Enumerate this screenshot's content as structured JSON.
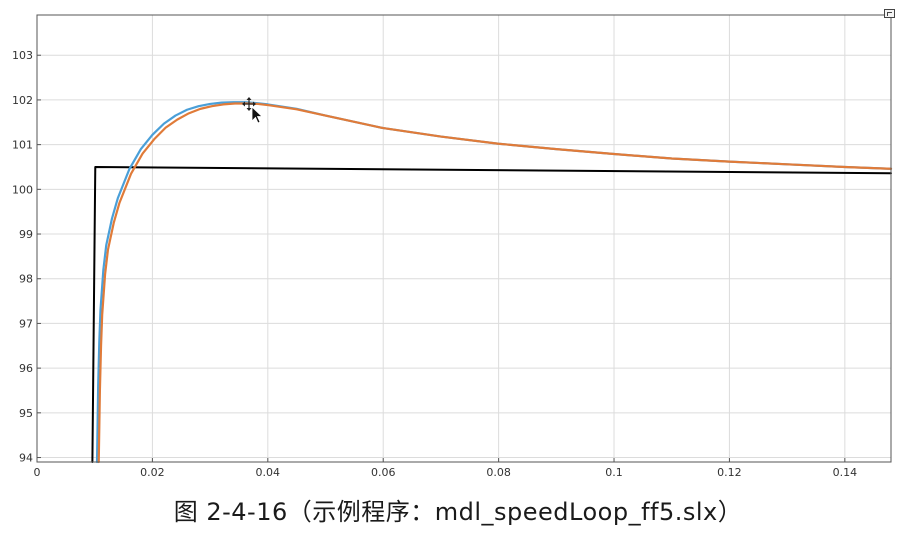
{
  "chart_data": {
    "type": "line",
    "title": "",
    "xlabel": "",
    "ylabel": "",
    "xlim": [
      0,
      0.148
    ],
    "ylim": [
      93.9,
      103.9
    ],
    "x_ticks": [
      0,
      0.02,
      0.04,
      0.06,
      0.08,
      0.1,
      0.12,
      0.14
    ],
    "x_tick_labels": [
      "0",
      "0.02",
      "0.04",
      "0.06",
      "0.08",
      "0.1",
      "0.12",
      "0.14"
    ],
    "y_ticks": [
      94,
      95,
      96,
      97,
      98,
      99,
      100,
      101,
      102,
      103
    ],
    "y_tick_labels": [
      "94",
      "95",
      "96",
      "97",
      "98",
      "99",
      "100",
      "101",
      "102",
      "103"
    ],
    "grid": true,
    "legend": "none",
    "series": [
      {
        "color": "#000000",
        "x": [
          0.0096,
          0.0101,
          0.0102,
          0.148
        ],
        "y": [
          93.9,
          100.5,
          100.5,
          100.36
        ]
      },
      {
        "color": "#4a9fd8",
        "x": [
          0.0104,
          0.0106,
          0.0108,
          0.011,
          0.0115,
          0.012,
          0.013,
          0.014,
          0.016,
          0.018,
          0.02,
          0.022,
          0.024,
          0.026,
          0.028,
          0.03,
          0.032,
          0.034,
          0.036,
          0.038,
          0.04,
          0.045,
          0.05,
          0.06,
          0.07,
          0.08,
          0.09,
          0.1,
          0.11,
          0.12,
          0.13,
          0.14,
          0.148
        ],
        "y": [
          93.9,
          95.6,
          96.6,
          97.3,
          98.2,
          98.75,
          99.35,
          99.8,
          100.45,
          100.9,
          101.22,
          101.47,
          101.65,
          101.78,
          101.86,
          101.91,
          101.94,
          101.95,
          101.95,
          101.93,
          101.9,
          101.8,
          101.65,
          101.37,
          101.18,
          101.02,
          100.9,
          100.79,
          100.69,
          100.62,
          100.56,
          100.5,
          100.46
        ]
      },
      {
        "color": "#e07b39",
        "x": [
          0.0107,
          0.0109,
          0.0111,
          0.0113,
          0.0118,
          0.0123,
          0.0133,
          0.0143,
          0.0163,
          0.0183,
          0.0203,
          0.0223,
          0.0243,
          0.0263,
          0.0283,
          0.0303,
          0.0323,
          0.0343,
          0.0363,
          0.0383,
          0.0403,
          0.045,
          0.05,
          0.06,
          0.07,
          0.08,
          0.09,
          0.1,
          0.11,
          0.12,
          0.13,
          0.14,
          0.148
        ],
        "y": [
          93.9,
          95.5,
          96.5,
          97.2,
          98.1,
          98.65,
          99.25,
          99.7,
          100.35,
          100.8,
          101.12,
          101.38,
          101.56,
          101.7,
          101.8,
          101.86,
          101.9,
          101.92,
          101.92,
          101.91,
          101.88,
          101.79,
          101.65,
          101.37,
          101.18,
          101.02,
          100.9,
          100.79,
          100.69,
          100.62,
          100.56,
          100.5,
          100.46
        ]
      }
    ]
  },
  "caption": "图 2-4-16（示例程序：mdl_speedLoop_ff5.slx）",
  "icons": {
    "corner": "window-icon",
    "cursor": "move-cursor-icon"
  }
}
